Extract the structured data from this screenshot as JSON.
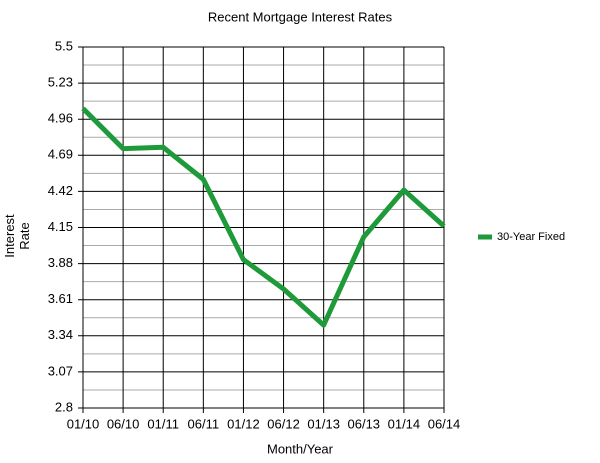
{
  "chart_data": {
    "type": "line",
    "title": "Recent Mortgage Interest Rates",
    "x_label": "Month/Year",
    "y_label": "Interest Rate",
    "categories": [
      "01/10",
      "06/10",
      "01/11",
      "06/11",
      "01/12",
      "06/12",
      "01/13",
      "06/13",
      "01/14",
      "06/14"
    ],
    "series": [
      {
        "name": "30-Year Fixed",
        "color": "#1f9a3a",
        "values": [
          5.04,
          4.74,
          4.75,
          4.51,
          3.91,
          3.69,
          3.42,
          4.08,
          4.43,
          4.16
        ]
      }
    ],
    "ylim": [
      2.8,
      5.5
    ],
    "yticks": [
      2.8,
      3.07,
      3.34,
      3.61,
      3.88,
      4.15,
      4.42,
      4.69,
      4.96,
      5.23,
      5.5
    ],
    "grid": true,
    "minor_grid": true,
    "legend": "right"
  }
}
